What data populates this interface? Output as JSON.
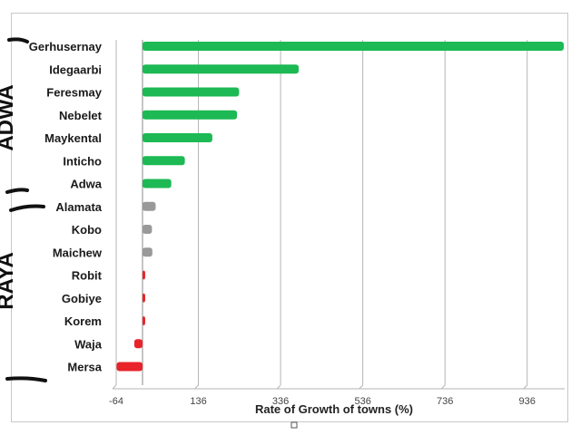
{
  "chart_data": {
    "type": "bar",
    "orientation": "horizontal",
    "title": "",
    "xlabel": "Rate of Growth of towns (%)",
    "ylabel": "",
    "xlim": [
      -64,
      1036
    ],
    "xticks": [
      "-64",
      "136",
      "336",
      "536",
      "736",
      "936"
    ],
    "grid": true,
    "legend": "none",
    "groups": [
      {
        "name": "ADWA",
        "color": "#1db954",
        "categories": [
          "Gerhusernay",
          "Idegaarbi",
          "Feresmay",
          "Nebelet",
          "Maykental",
          "Inticho",
          "Adwa"
        ]
      },
      {
        "name": "RAYA",
        "color": "#999999",
        "categories": [
          "Alamata",
          "Kobo",
          "Maichew"
        ]
      },
      {
        "name": "",
        "color": "#e8232a",
        "categories": [
          "Robit",
          "Gobiye",
          "Korem",
          "Waja",
          "Mersa"
        ]
      }
    ],
    "categories": [
      "Gerhusernay",
      "Idegaarbi",
      "Feresmay",
      "Nebelet",
      "Maykental",
      "Inticho",
      "Adwa",
      "Alamata",
      "Kobo",
      "Maichew",
      "Robit",
      "Gobiye",
      "Korem",
      "Waja",
      "Mersa"
    ],
    "values": [
      1025,
      380,
      235,
      230,
      170,
      103,
      70,
      32,
      23,
      24,
      5,
      3,
      2,
      -20,
      -63
    ],
    "colors": [
      "#1db954",
      "#1db954",
      "#1db954",
      "#1db954",
      "#1db954",
      "#1db954",
      "#1db954",
      "#999999",
      "#999999",
      "#999999",
      "#e8232a",
      "#e8232a",
      "#e8232a",
      "#e8232a",
      "#e8232a"
    ]
  }
}
